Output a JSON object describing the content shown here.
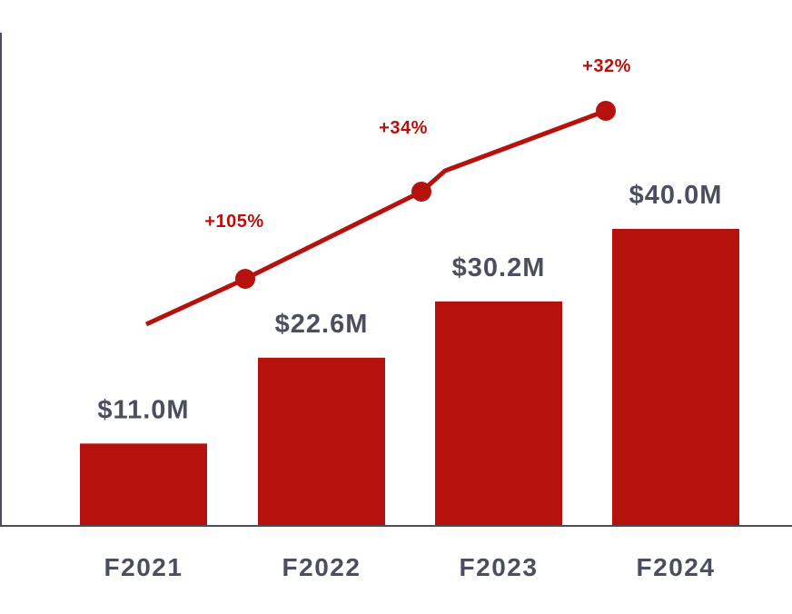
{
  "chart_data": {
    "type": "bar",
    "categories": [
      "F2021",
      "F2022",
      "F2023",
      "F2024"
    ],
    "values": [
      11.0,
      22.6,
      30.2,
      40.0
    ],
    "value_labels": [
      "$11.0M",
      "$22.6M",
      "$30.2M",
      "$40.0M"
    ],
    "growth_labels": [
      "+105%",
      "+34%",
      "+32%"
    ],
    "ylim": [
      0,
      55
    ],
    "grid": false,
    "colors": {
      "bar": "#b5120e",
      "line": "#b5120e",
      "value_text": "#4a4e5f",
      "category_text": "#4a4e5f",
      "growth_text": "#b5120e",
      "axis": "#4a4e5f"
    }
  }
}
